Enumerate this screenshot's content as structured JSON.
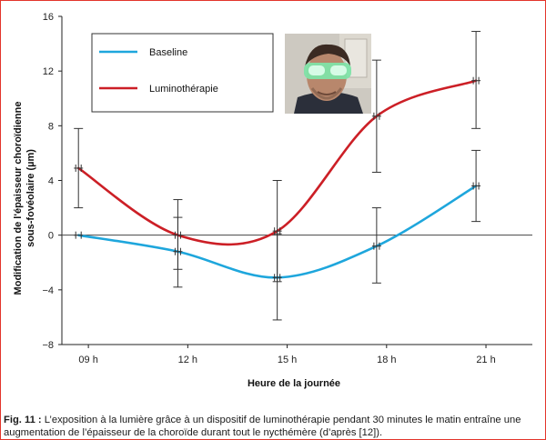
{
  "chart_data": {
    "type": "line",
    "x": [
      "09 h",
      "12 h",
      "15 h",
      "18 h",
      "21 h"
    ],
    "x_values": [
      9,
      12,
      15,
      18,
      21
    ],
    "ylabel_line1": "Modification de l'épaisseur choroïdienne",
    "ylabel_line2": "sous-fovéolaire (µm)",
    "xlabel": "Heure de la journée",
    "ylim": [
      -8,
      16
    ],
    "yticks": [
      -8,
      -4,
      0,
      4,
      8,
      12,
      16
    ],
    "ytick_labels": [
      "−8",
      "−4",
      "0",
      "4",
      "8",
      "12",
      "16"
    ],
    "legend_position": "top-left",
    "grid": false,
    "series": [
      {
        "name": "Baseline",
        "color": "#1ea6dc",
        "x": [
          8.7,
          11.7,
          14.7,
          17.7,
          20.7
        ],
        "values": [
          0.0,
          -1.2,
          -3.1,
          -0.8,
          3.6
        ],
        "err_low": [
          0.0,
          -3.8,
          -6.2,
          -3.5,
          1.0
        ],
        "err_high": [
          0.0,
          1.3,
          0.1,
          2.0,
          6.2
        ]
      },
      {
        "name": "Luminothérapie",
        "color": "#cc1f26",
        "x": [
          8.7,
          11.7,
          14.7,
          17.7,
          20.7
        ],
        "values": [
          4.9,
          0.0,
          0.3,
          8.7,
          11.3
        ],
        "err_low": [
          2.0,
          -2.5,
          -3.4,
          4.6,
          7.8
        ],
        "err_high": [
          7.8,
          2.6,
          4.0,
          12.8,
          14.9
        ]
      }
    ]
  },
  "caption": {
    "label": "Fig. 11 :",
    "text": " L’exposition à la lumière grâce à un dispositif de luminothérapie pendant 30 minutes le matin entraîne une augmentation de l’épaisseur de la choroïde durant tout le nycthémère (d’après [12])."
  },
  "photo": {
    "subject": "person-wearing-luminotherapy-glasses",
    "colors": {
      "background": "#c9c6bf",
      "skin": "#b8876c",
      "hair": "#3b2a22",
      "glasses": "#7fe3a8",
      "shirt": "#2b2f3a"
    }
  }
}
